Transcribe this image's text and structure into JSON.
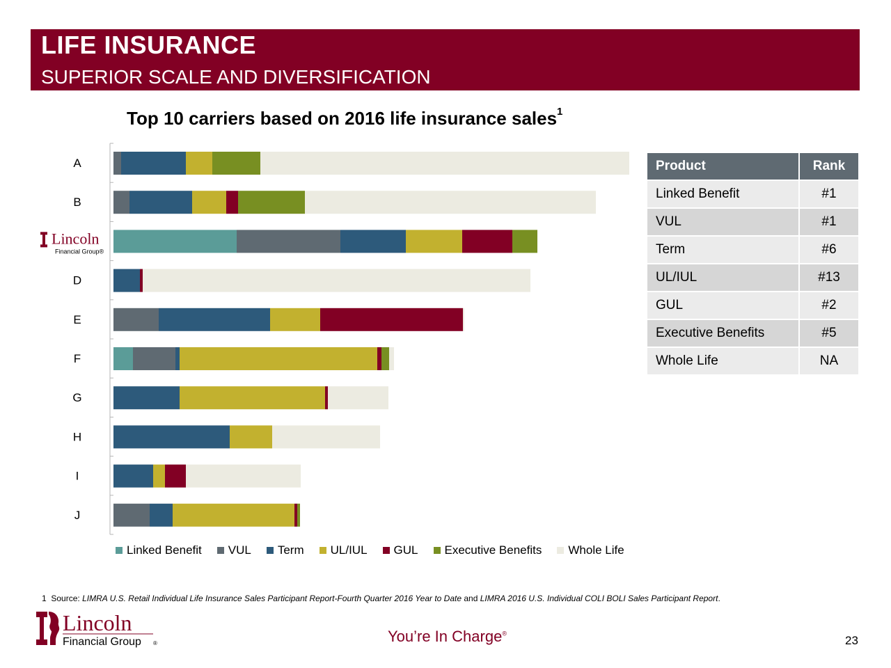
{
  "header": {
    "title": "LIFE INSURANCE",
    "subtitle": "SUPERIOR SCALE AND DIVERSIFICATION"
  },
  "chart_data": {
    "type": "bar",
    "orientation": "horizontal",
    "stacked": true,
    "title": "Top 10 carriers based on 2016 life insurance sales",
    "title_footnote_marker": "1",
    "categories": [
      "A",
      "B",
      "Lincoln Financial Group",
      "D",
      "E",
      "F",
      "G",
      "H",
      "I",
      "J"
    ],
    "series": [
      {
        "name": "Linked Benefit",
        "color": "#5b9c98",
        "values": [
          0,
          0,
          177,
          0,
          0,
          28,
          0,
          0,
          0,
          0
        ]
      },
      {
        "name": "VUL",
        "color": "#5f6a72",
        "values": [
          11,
          23,
          149,
          0,
          65,
          61,
          0,
          0,
          0,
          52
        ]
      },
      {
        "name": "Term",
        "color": "#2d5a7b",
        "values": [
          93,
          90,
          94,
          38,
          160,
          6,
          95,
          167,
          57,
          33
        ]
      },
      {
        "name": "UL/IUL",
        "color": "#c2b12f",
        "values": [
          38,
          49,
          81,
          0,
          72,
          284,
          209,
          61,
          17,
          175
        ]
      },
      {
        "name": "GUL",
        "color": "#820024",
        "values": [
          0,
          17,
          72,
          4,
          205,
          6,
          4,
          0,
          30,
          4
        ]
      },
      {
        "name": "Executive Benefits",
        "color": "#788f22",
        "values": [
          69,
          96,
          36,
          0,
          0,
          11,
          0,
          0,
          0,
          4
        ]
      },
      {
        "name": "Whole Life",
        "color": "#ecebe1",
        "values": [
          530,
          418,
          0,
          557,
          2,
          7,
          87,
          155,
          165,
          0
        ]
      }
    ],
    "legend_position": "bottom",
    "grid": false
  },
  "rank_table": {
    "headers": [
      "Product",
      "Rank"
    ],
    "rows": [
      [
        "Linked Benefit",
        "#1"
      ],
      [
        "VUL",
        "#1"
      ],
      [
        "Term",
        "#6"
      ],
      [
        "UL/IUL",
        "#13"
      ],
      [
        "GUL",
        "#2"
      ],
      [
        "Executive Benefits",
        "#5"
      ],
      [
        "Whole Life",
        "NA"
      ]
    ]
  },
  "footnote": {
    "marker": "1",
    "prefix": "Source: ",
    "source1": "LIMRA U.S. Retail Individual Life Insurance Sales Participant Report-Fourth Quarter 2016 Year to Date",
    "connector": " and ",
    "source2": "LIMRA 2016 U.S. Individual COLI BOLI Sales Participant Report",
    "suffix": "."
  },
  "logo": {
    "name_line1": "Lincoln",
    "name_line2": "Financial Group",
    "registered": "®"
  },
  "tagline": "You’re In Charge",
  "tagline_mark": "®",
  "page_number": "23",
  "colors": {
    "brand": "#820024",
    "table_header": "#5f6a72"
  }
}
